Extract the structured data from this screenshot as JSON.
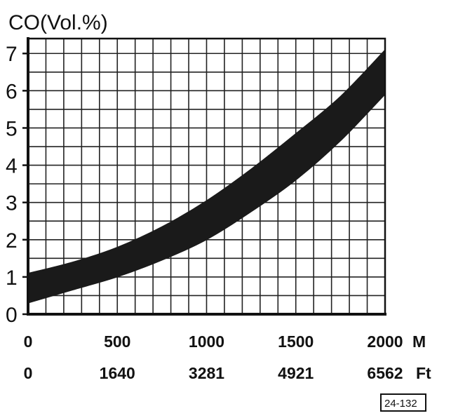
{
  "chart_data": {
    "type": "area",
    "title": "CO(Vol.%)",
    "ylabel": "CO(Vol.%)",
    "xlabel": "",
    "xlim": [
      0,
      2000
    ],
    "ylim": [
      0,
      7.4
    ],
    "grid": true,
    "y_ticks": [
      "0",
      "1",
      "2",
      "3",
      "4",
      "5",
      "6",
      "7"
    ],
    "x_ticks_m": [
      "0",
      "500",
      "1000",
      "1500",
      "2000"
    ],
    "x_ticks_ft": [
      "0",
      "1640",
      "3281",
      "4921",
      "6562"
    ],
    "x_unit_primary": "M",
    "x_unit_secondary": "Ft",
    "series": [
      {
        "x": [
          0,
          250,
          500,
          750,
          1000,
          1250,
          1500,
          1750,
          2000
        ],
        "upper": [
          1.1,
          1.4,
          1.8,
          2.35,
          3.05,
          3.9,
          4.85,
          5.85,
          7.1
        ],
        "lower": [
          0.3,
          0.65,
          1.0,
          1.45,
          2.0,
          2.75,
          3.6,
          4.65,
          5.9
        ]
      }
    ],
    "figure_ref": "24-132"
  }
}
